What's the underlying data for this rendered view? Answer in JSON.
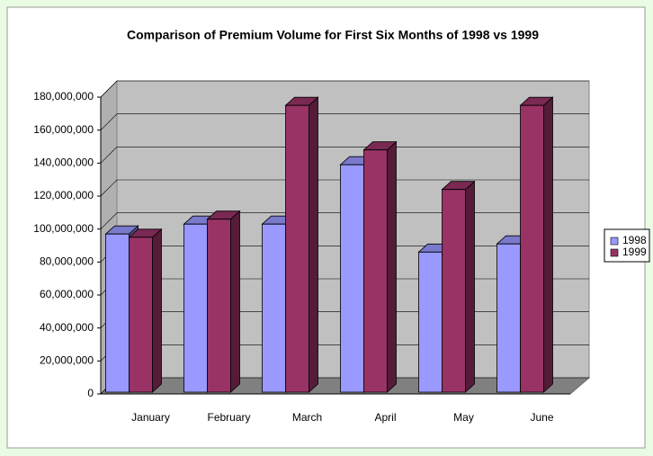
{
  "chart_data": {
    "type": "bar3d",
    "title": "Comparison of Premium Volume for First Six Months of 1998 vs 1999",
    "categories": [
      "January",
      "February",
      "March",
      "April",
      "May",
      "June"
    ],
    "series": [
      {
        "name": "1998",
        "color": "#9999ff",
        "values": [
          97000000,
          103000000,
          103000000,
          139000000,
          86000000,
          91000000
        ]
      },
      {
        "name": "1999",
        "color": "#993366",
        "values": [
          95000000,
          106000000,
          175000000,
          148000000,
          124000000,
          175000000
        ]
      }
    ],
    "ylim": [
      0,
      180000000
    ],
    "yticks": [
      {
        "value": 0,
        "label": "0"
      },
      {
        "value": 20000000,
        "label": "20,000,000"
      },
      {
        "value": 40000000,
        "label": "40,000,000"
      },
      {
        "value": 60000000,
        "label": "60,000,000"
      },
      {
        "value": 80000000,
        "label": "80,000,000"
      },
      {
        "value": 100000000,
        "label": "100,000,000"
      },
      {
        "value": 120000000,
        "label": "120,000,000"
      },
      {
        "value": 140000000,
        "label": "140,000,000"
      },
      {
        "value": 160000000,
        "label": "160,000,000"
      },
      {
        "value": 180000000,
        "label": "180,000,000"
      }
    ],
    "grid": true,
    "legend": "right"
  }
}
